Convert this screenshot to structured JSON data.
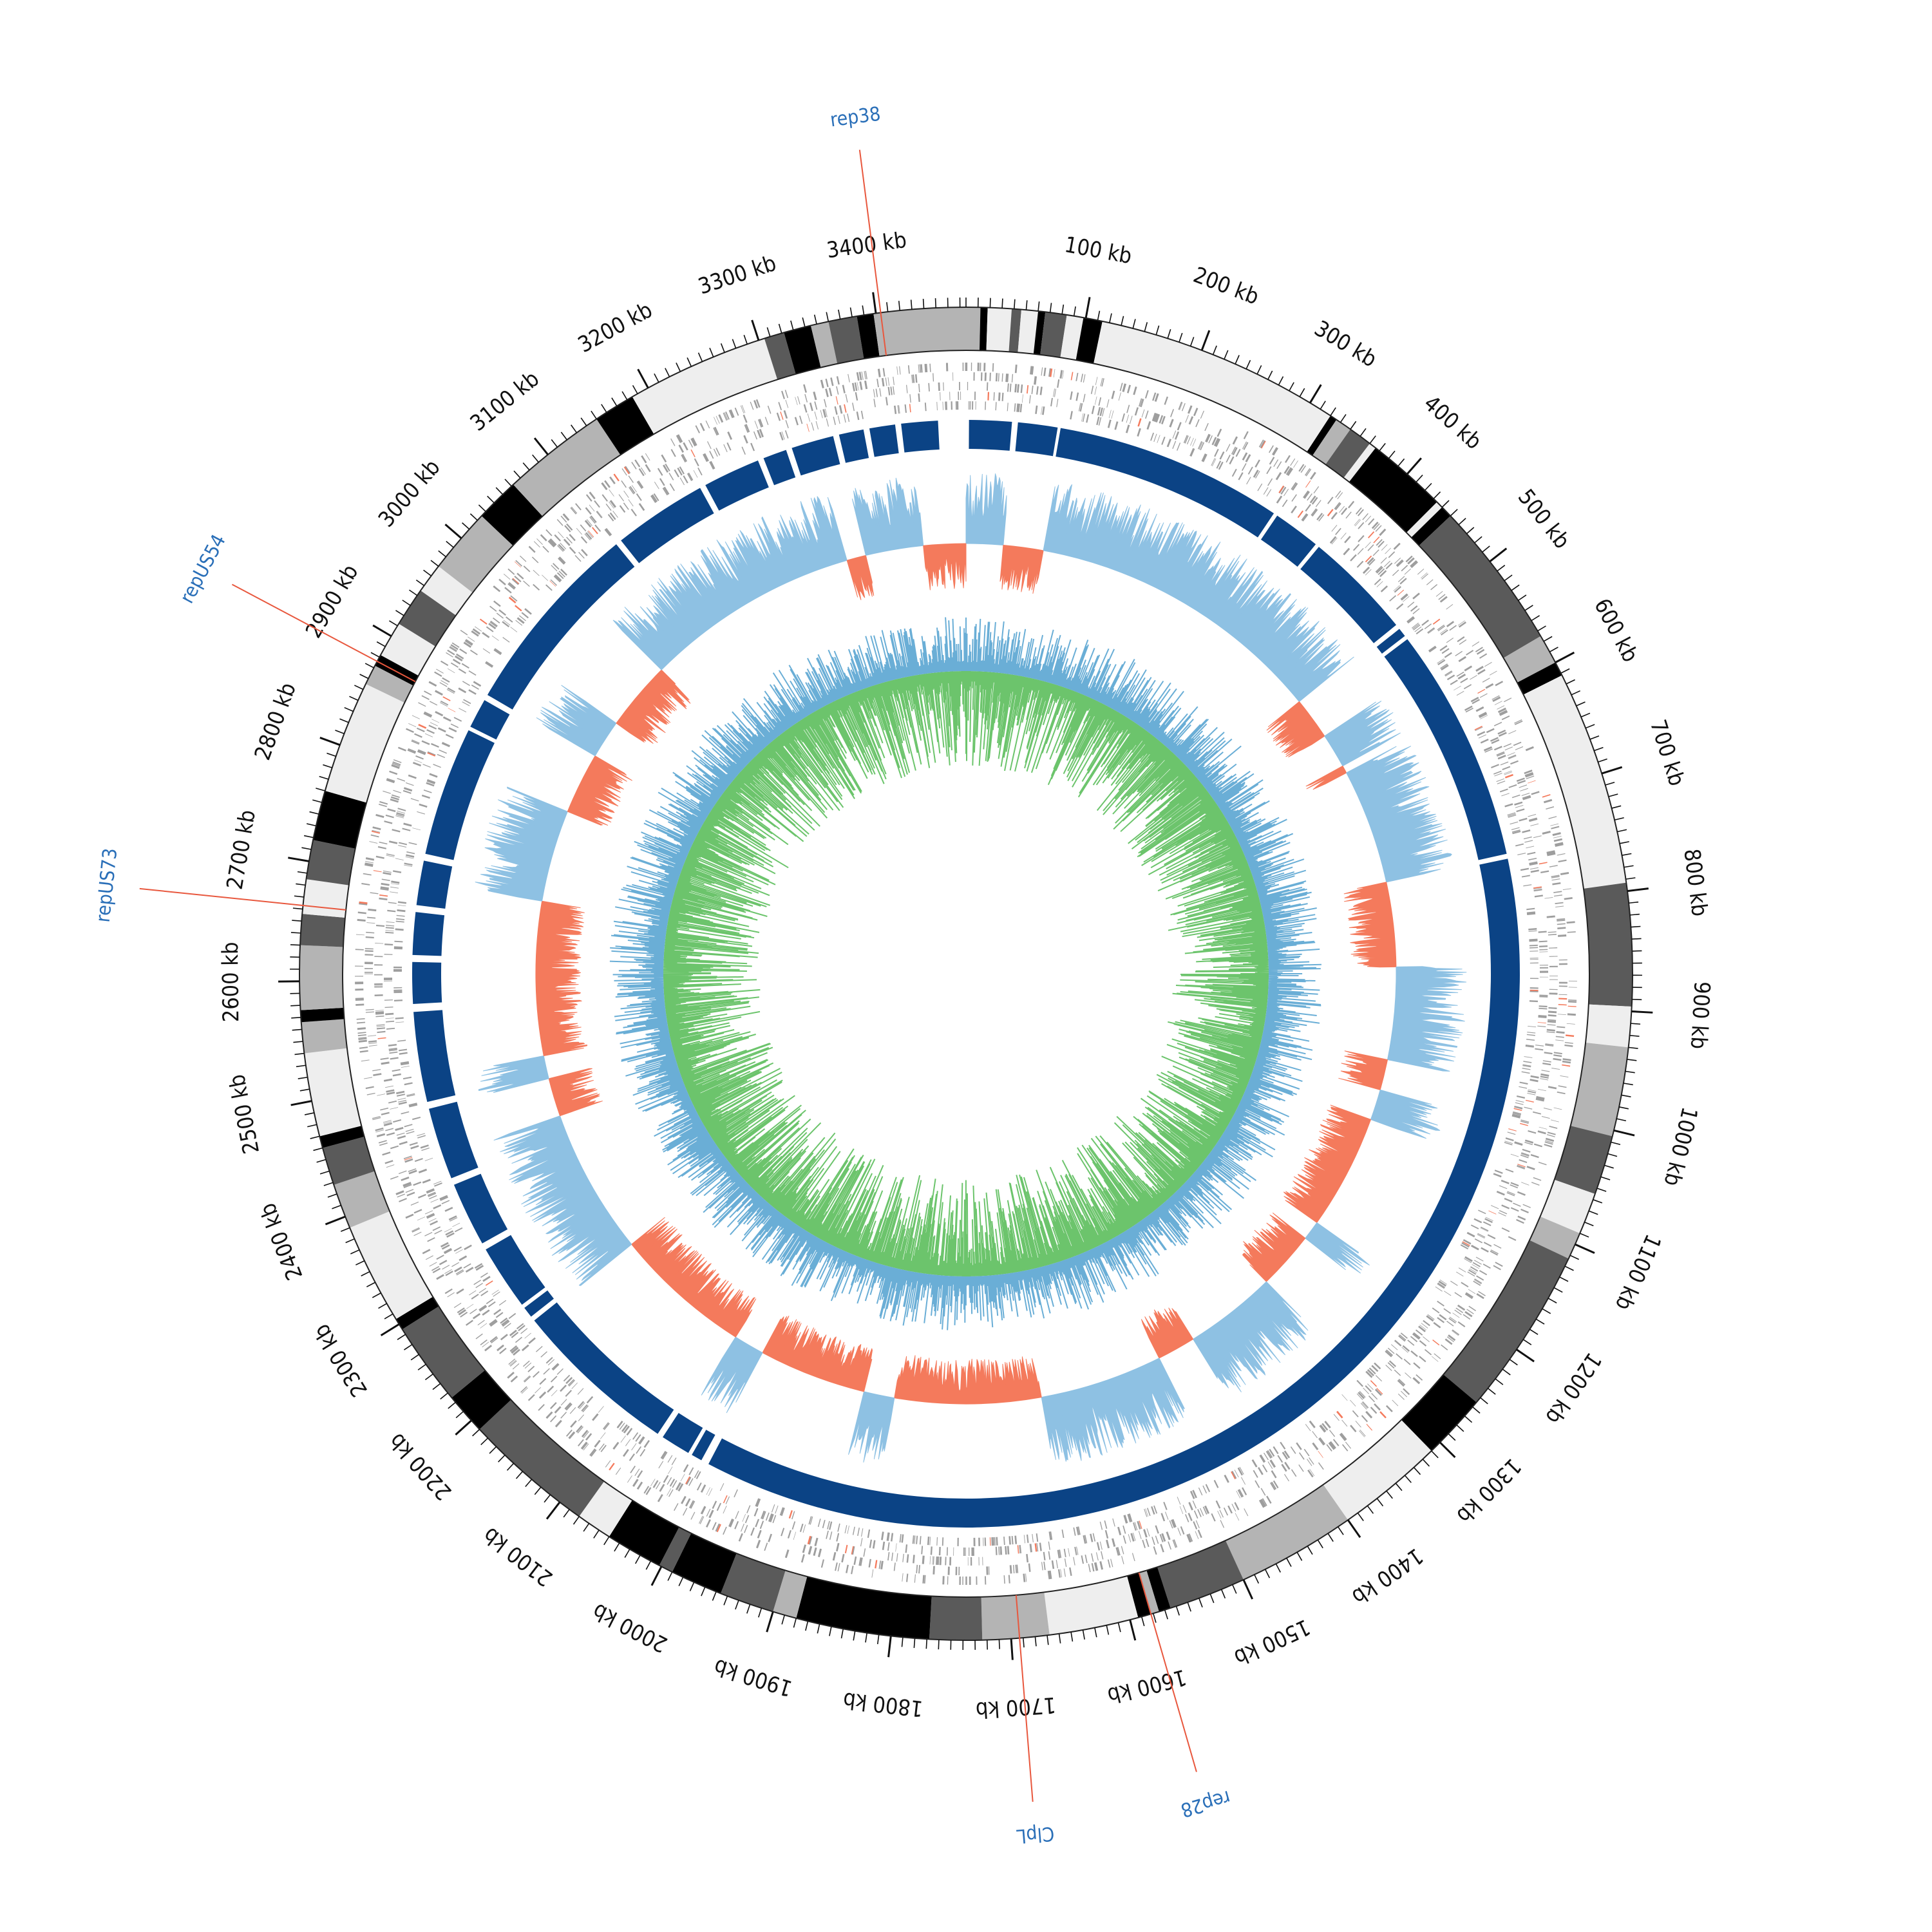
{
  "genome": {
    "length_kb": 3475
  },
  "colors": {
    "ideogram_shades": [
      "#000000",
      "#5a5a5a",
      "#b4b4b4",
      "#eeeeee"
    ],
    "ideogram_outline": "#222222",
    "feature_grey": "#9e9e9e",
    "feature_red": "#f47a5c",
    "contig_blue": "#0b4385",
    "gc_positive": "#8ec1e3",
    "gc_negative": "#f47a5c",
    "skew_blue": "#6aaed6",
    "skew_green": "#6cc46c",
    "annotation_text": "#2a6fb8",
    "annotation_line": "#e8573d"
  },
  "axis": {
    "unit": "kb",
    "major_ticks_kb": [
      100,
      200,
      300,
      400,
      500,
      600,
      700,
      800,
      900,
      1000,
      1100,
      1200,
      1300,
      1400,
      1500,
      1600,
      1700,
      1800,
      1900,
      2000,
      2100,
      2200,
      2300,
      2400,
      2500,
      2600,
      2700,
      2800,
      2900,
      3000,
      3100,
      3200,
      3300,
      3400
    ],
    "major_labels": [
      "100 kb",
      "200 kb",
      "300 kb",
      "400 kb",
      "500 kb",
      "600 kb",
      "700 kb",
      "800 kb",
      "900 kb",
      "1000 kb",
      "1100 kb",
      "1200 kb",
      "1300 kb",
      "1400 kb",
      "1500 kb",
      "1600 kb",
      "1700 kb",
      "1800 kb",
      "1900 kb",
      "2000 kb",
      "2100 kb",
      "2200 kb",
      "2300 kb",
      "2400 kb",
      "2500 kb",
      "2600 kb",
      "2700 kb",
      "2800 kb",
      "2900 kb",
      "3000 kb",
      "3100 kb",
      "3200 kb",
      "3300 kb",
      "3400 kb"
    ],
    "minor_tick_step_kb": 10
  },
  "annotations": [
    {
      "label": "rep38",
      "position_kb": 3404
    },
    {
      "label": "repUS54",
      "position_kb": 2876
    },
    {
      "label": "repUS73",
      "position_kb": 2663
    },
    {
      "label": "ClpL",
      "position_kb": 1693
    },
    {
      "label": "rep28",
      "position_kb": 1582
    }
  ],
  "chart_data": {
    "type": "circular-genome-map",
    "length_kb": 3475,
    "ideogram_bands": [
      {
        "start": 0,
        "end": 12,
        "shade": 2
      },
      {
        "start": 12,
        "end": 18,
        "shade": 0
      },
      {
        "start": 18,
        "end": 38,
        "shade": 3
      },
      {
        "start": 38,
        "end": 46,
        "shade": 1
      },
      {
        "start": 46,
        "end": 60,
        "shade": 3
      },
      {
        "start": 60,
        "end": 66,
        "shade": 0
      },
      {
        "start": 66,
        "end": 84,
        "shade": 1
      },
      {
        "start": 84,
        "end": 98,
        "shade": 3
      },
      {
        "start": 98,
        "end": 114,
        "shade": 0
      },
      {
        "start": 114,
        "end": 320,
        "shade": 3
      },
      {
        "start": 320,
        "end": 326,
        "shade": 0
      },
      {
        "start": 326,
        "end": 340,
        "shade": 2
      },
      {
        "start": 340,
        "end": 360,
        "shade": 1
      },
      {
        "start": 360,
        "end": 366,
        "shade": 3
      },
      {
        "start": 366,
        "end": 434,
        "shade": 0
      },
      {
        "start": 434,
        "end": 440,
        "shade": 3
      },
      {
        "start": 440,
        "end": 450,
        "shade": 0
      },
      {
        "start": 450,
        "end": 575,
        "shade": 1
      },
      {
        "start": 575,
        "end": 600,
        "shade": 2
      },
      {
        "start": 600,
        "end": 612,
        "shade": 0
      },
      {
        "start": 612,
        "end": 793,
        "shade": 3
      },
      {
        "start": 793,
        "end": 896,
        "shade": 1
      },
      {
        "start": 896,
        "end": 930,
        "shade": 3
      },
      {
        "start": 930,
        "end": 1005,
        "shade": 2
      },
      {
        "start": 1005,
        "end": 1055,
        "shade": 1
      },
      {
        "start": 1055,
        "end": 1090,
        "shade": 3
      },
      {
        "start": 1090,
        "end": 1113,
        "shade": 2
      },
      {
        "start": 1113,
        "end": 1255,
        "shade": 1
      },
      {
        "start": 1255,
        "end": 1310,
        "shade": 0
      },
      {
        "start": 1310,
        "end": 1400,
        "shade": 3
      },
      {
        "start": 1400,
        "end": 1500,
        "shade": 2
      },
      {
        "start": 1500,
        "end": 1565,
        "shade": 1
      },
      {
        "start": 1565,
        "end": 1575,
        "shade": 0
      },
      {
        "start": 1575,
        "end": 1582,
        "shade": 2
      },
      {
        "start": 1582,
        "end": 1593,
        "shade": 0
      },
      {
        "start": 1593,
        "end": 1668,
        "shade": 3
      },
      {
        "start": 1668,
        "end": 1724,
        "shade": 2
      },
      {
        "start": 1724,
        "end": 1768,
        "shade": 1
      },
      {
        "start": 1768,
        "end": 1880,
        "shade": 0
      },
      {
        "start": 1880,
        "end": 1900,
        "shade": 2
      },
      {
        "start": 1900,
        "end": 1946,
        "shade": 1
      },
      {
        "start": 1946,
        "end": 1990,
        "shade": 0
      },
      {
        "start": 1990,
        "end": 2002,
        "shade": 1
      },
      {
        "start": 2002,
        "end": 2050,
        "shade": 0
      },
      {
        "start": 2050,
        "end": 2080,
        "shade": 3
      },
      {
        "start": 2080,
        "end": 2190,
        "shade": 1
      },
      {
        "start": 2190,
        "end": 2225,
        "shade": 0
      },
      {
        "start": 2225,
        "end": 2295,
        "shade": 1
      },
      {
        "start": 2295,
        "end": 2305,
        "shade": 0
      },
      {
        "start": 2305,
        "end": 2390,
        "shade": 3
      },
      {
        "start": 2390,
        "end": 2428,
        "shade": 2
      },
      {
        "start": 2428,
        "end": 2460,
        "shade": 1
      },
      {
        "start": 2460,
        "end": 2470,
        "shade": 0
      },
      {
        "start": 2470,
        "end": 2540,
        "shade": 3
      },
      {
        "start": 2540,
        "end": 2566,
        "shade": 2
      },
      {
        "start": 2566,
        "end": 2576,
        "shade": 0
      },
      {
        "start": 2576,
        "end": 2630,
        "shade": 2
      },
      {
        "start": 2630,
        "end": 2656,
        "shade": 1
      },
      {
        "start": 2656,
        "end": 2685,
        "shade": 3
      },
      {
        "start": 2685,
        "end": 2718,
        "shade": 1
      },
      {
        "start": 2718,
        "end": 2760,
        "shade": 0
      },
      {
        "start": 2760,
        "end": 2855,
        "shade": 3
      },
      {
        "start": 2855,
        "end": 2872,
        "shade": 2
      },
      {
        "start": 2872,
        "end": 2882,
        "shade": 0
      },
      {
        "start": 2882,
        "end": 2912,
        "shade": 3
      },
      {
        "start": 2912,
        "end": 2945,
        "shade": 1
      },
      {
        "start": 2945,
        "end": 2970,
        "shade": 3
      },
      {
        "start": 2970,
        "end": 3025,
        "shade": 2
      },
      {
        "start": 3025,
        "end": 3062,
        "shade": 0
      },
      {
        "start": 3062,
        "end": 3150,
        "shade": 2
      },
      {
        "start": 3150,
        "end": 3185,
        "shade": 0
      },
      {
        "start": 3185,
        "end": 3305,
        "shade": 3
      },
      {
        "start": 3305,
        "end": 3322,
        "shade": 1
      },
      {
        "start": 3322,
        "end": 3345,
        "shade": 0
      },
      {
        "start": 3345,
        "end": 3360,
        "shade": 2
      },
      {
        "start": 3360,
        "end": 3384,
        "shade": 1
      },
      {
        "start": 3384,
        "end": 3398,
        "shade": 0
      },
      {
        "start": 3398,
        "end": 3475,
        "shade": 2
      }
    ],
    "contigs": [
      [
        3,
        46
      ],
      [
        52,
        92
      ],
      [
        95,
        326
      ],
      [
        330,
        378
      ],
      [
        382,
        492
      ],
      [
        497,
        506
      ],
      [
        510,
        748
      ],
      [
        753,
        2005
      ],
      [
        2013,
        2024
      ],
      [
        2028,
        2058
      ],
      [
        2064,
        2232
      ],
      [
        2237,
        2248
      ],
      [
        2252,
        2318
      ],
      [
        2325,
        2390
      ],
      [
        2397,
        2470
      ],
      [
        2477,
        2568
      ],
      [
        2576,
        2618
      ],
      [
        2625,
        2668
      ],
      [
        2675,
        2720
      ],
      [
        2727,
        2858
      ],
      [
        2862,
        2892
      ],
      [
        2898,
        3097
      ],
      [
        3103,
        3198
      ],
      [
        3204,
        3262
      ],
      [
        3268,
        3292
      ],
      [
        3298,
        3341
      ],
      [
        3347,
        3372
      ],
      [
        3378,
        3404
      ],
      [
        3410,
        3447
      ]
    ],
    "gc_content_segments": [
      {
        "start": 0,
        "end": 48,
        "sign": 1
      },
      {
        "start": 48,
        "end": 100,
        "sign": -1
      },
      {
        "start": 100,
        "end": 490,
        "sign": 1
      },
      {
        "start": 490,
        "end": 545,
        "sign": -1
      },
      {
        "start": 545,
        "end": 590,
        "sign": 1
      },
      {
        "start": 590,
        "end": 600,
        "sign": -1
      },
      {
        "start": 600,
        "end": 750,
        "sign": 1
      },
      {
        "start": 750,
        "end": 860,
        "sign": -1
      },
      {
        "start": 860,
        "end": 980,
        "sign": 1
      },
      {
        "start": 980,
        "end": 1020,
        "sign": -1
      },
      {
        "start": 1020,
        "end": 1060,
        "sign": 1
      },
      {
        "start": 1060,
        "end": 1210,
        "sign": -1
      },
      {
        "start": 1210,
        "end": 1235,
        "sign": 1
      },
      {
        "start": 1235,
        "end": 1310,
        "sign": -1
      },
      {
        "start": 1310,
        "end": 1430,
        "sign": 1
      },
      {
        "start": 1430,
        "end": 1480,
        "sign": -1
      },
      {
        "start": 1480,
        "end": 1500,
        "sign": 1
      },
      {
        "start": 1500,
        "end": 1640,
        "sign": 1
      },
      {
        "start": 1640,
        "end": 1830,
        "sign": -1
      },
      {
        "start": 1830,
        "end": 1870,
        "sign": 1
      },
      {
        "start": 1870,
        "end": 2010,
        "sign": -1
      },
      {
        "start": 2010,
        "end": 2050,
        "sign": 1
      },
      {
        "start": 2050,
        "end": 2230,
        "sign": -1
      },
      {
        "start": 2230,
        "end": 2420,
        "sign": 1
      },
      {
        "start": 2420,
        "end": 2470,
        "sign": -1
      },
      {
        "start": 2470,
        "end": 2500,
        "sign": 1
      },
      {
        "start": 2500,
        "end": 2700,
        "sign": -1
      },
      {
        "start": 2700,
        "end": 2820,
        "sign": 1
      },
      {
        "start": 2820,
        "end": 2900,
        "sign": -1
      },
      {
        "start": 2900,
        "end": 2950,
        "sign": 1
      },
      {
        "start": 2950,
        "end": 3040,
        "sign": -1
      },
      {
        "start": 3040,
        "end": 3320,
        "sign": 1
      },
      {
        "start": 3320,
        "end": 3345,
        "sign": -1
      },
      {
        "start": 3345,
        "end": 3420,
        "sign": 1
      },
      {
        "start": 3420,
        "end": 3475,
        "sign": -1
      }
    ]
  }
}
